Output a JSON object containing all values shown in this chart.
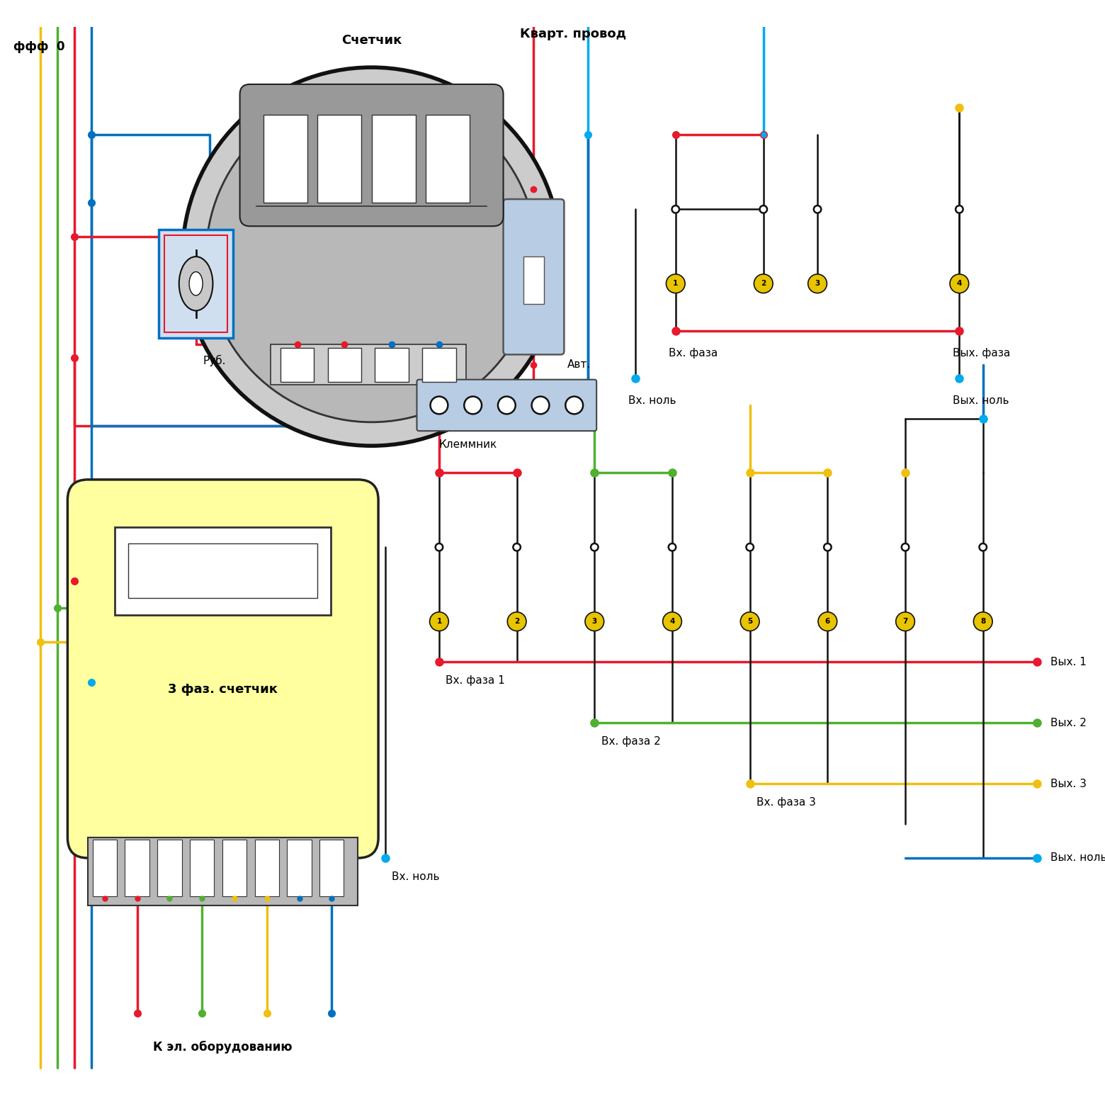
{
  "bg_color": "#ffffff",
  "wire_colors": {
    "red": "#e8192c",
    "blue": "#0070c0",
    "yellow": "#f0c010",
    "green": "#50b030",
    "cyan": "#00aaee",
    "black": "#111111",
    "gray": "#aaaaaa",
    "dark_gray": "#555555"
  },
  "terminal_color": "#e8c400",
  "meter2_body_color": "#ffffa0",
  "switch_color": "#b8cce4",
  "klemmnik_color": "#b8cce4",
  "labels": {
    "fff0": "ффф  0",
    "schetnik": "Счетчик",
    "kvart": "Кварт. провод",
    "rub": "Руб.",
    "avt": "Авт.",
    "klemmnik": "Клеммник",
    "vx_faza": "Вх. фаза",
    "vyx_faza": "Вых. фаза",
    "vx_nol": "Вх. ноль",
    "vyx_nol": "Вых. ноль",
    "3faz": "3 фаз. счетчик",
    "k_el": "К эл. оборудованию",
    "vx_faza1": "Вх. фаза 1",
    "vx_faza2": "Вх. фаза 2",
    "vx_faza3": "Вх. фаза 3",
    "vx_nol2": "Вх. ноль",
    "vyx1": "Вых. 1",
    "vyx2": "Вых. 2",
    "vyx3": "Вых. 3",
    "vyx_nol2": "Вых. ноль"
  }
}
